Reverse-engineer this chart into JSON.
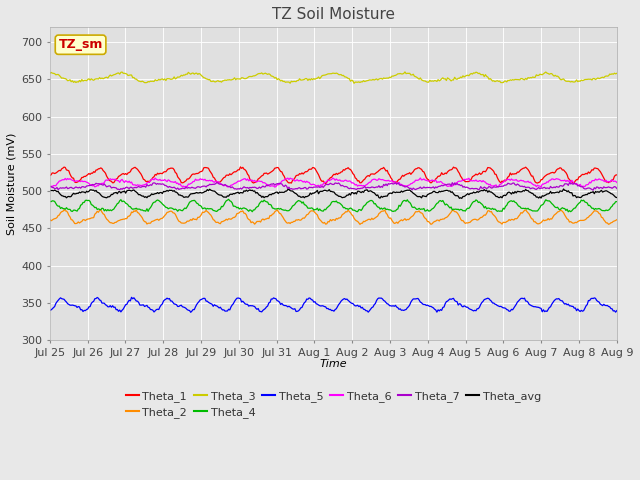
{
  "title": "TZ Soil Moisture",
  "xlabel": "Time",
  "ylabel": "Soil Moisture (mV)",
  "ylim": [
    300,
    720
  ],
  "yticks": [
    300,
    350,
    400,
    450,
    500,
    550,
    600,
    650,
    700
  ],
  "x_labels": [
    "Jul 25",
    "Jul 26",
    "Jul 27",
    "Jul 28",
    "Jul 29",
    "Jul 30",
    "Jul 31",
    "Aug 1",
    "Aug 2",
    "Aug 3",
    "Aug 4",
    "Aug 5",
    "Aug 6",
    "Aug 7",
    "Aug 8",
    "Aug 9"
  ],
  "n_points": 480,
  "series": [
    {
      "name": "Theta_1",
      "color": "#ff0000",
      "base": 522,
      "amp": 8,
      "freq": 1.0,
      "trend": -0.008
    },
    {
      "name": "Theta_2",
      "color": "#ff8c00",
      "base": 464,
      "amp": 7,
      "freq": 1.0,
      "trend": -0.006
    },
    {
      "name": "Theta_3",
      "color": "#cccc00",
      "base": 652,
      "amp": 5,
      "freq": 0.5,
      "trend": -0.01
    },
    {
      "name": "Theta_4",
      "color": "#00bb00",
      "base": 479,
      "amp": 6,
      "freq": 1.0,
      "trend": -0.006
    },
    {
      "name": "Theta_5",
      "color": "#0000ff",
      "base": 347,
      "amp": 7,
      "freq": 1.0,
      "trend": -0.003
    },
    {
      "name": "Theta_6",
      "color": "#ff00ff",
      "base": 512,
      "amp": 4,
      "freq": 0.8,
      "trend": -0.004
    },
    {
      "name": "Theta_7",
      "color": "#aa00cc",
      "base": 506,
      "amp": 3,
      "freq": 0.6,
      "trend": -0.002
    },
    {
      "name": "Theta_avg",
      "color": "#000000",
      "base": 497,
      "amp": 4,
      "freq": 0.9,
      "trend": -0.008
    }
  ],
  "annotation_text": "TZ_sm",
  "annotation_color": "#cc0000",
  "annotation_bg": "#ffffcc",
  "annotation_edge": "#ccaa00",
  "fig_bg_color": "#e8e8e8",
  "plot_bg_color": "#e0e0e0",
  "title_fontsize": 11,
  "tick_fontsize": 8,
  "legend_fontsize": 8,
  "ylabel_fontsize": 8,
  "xlabel_fontsize": 8
}
